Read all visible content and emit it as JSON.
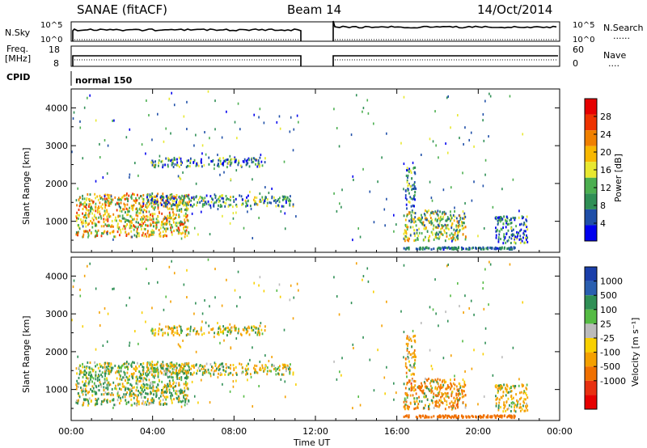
{
  "header": {
    "station": "SANAE (fitACF)",
    "beam": "Beam 14",
    "date": "14/Oct/2014"
  },
  "sky_panel": {
    "left_label": "N.Sky",
    "left_ticks": [
      "10^5",
      "10^0"
    ],
    "right_label": "N.Search",
    "right_ticks": [
      "10^5",
      "10^0"
    ],
    "line_style_note": "......"
  },
  "freq_panel": {
    "left_label_1": "Freq.",
    "left_label_2": "[MHz]",
    "left_ticks": [
      "18",
      "8"
    ],
    "right_label": "Nave",
    "right_ticks": [
      "60",
      "0"
    ],
    "cpid_label": "CPID",
    "mode_label": "normal 150"
  },
  "power_panel": {
    "ylabel": "Slant Range [km]",
    "yticks": [
      "4000",
      "3000",
      "2000",
      "1000"
    ],
    "colorbar_label": "Power [dB]",
    "colorbar_ticks": [
      "28",
      "24",
      "20",
      "16",
      "12",
      "8",
      "4"
    ],
    "colors": [
      "#0000ee",
      "#1f4fa8",
      "#2f8f55",
      "#4caf50",
      "#e8e830",
      "#f8b800",
      "#f08000",
      "#ee3300",
      "#e60000"
    ]
  },
  "velocity_panel": {
    "ylabel": "Slant Range [km]",
    "yticks": [
      "4000",
      "3000",
      "2000",
      "1000"
    ],
    "colorbar_label": "Velocity [m s⁻¹]",
    "colorbar_ticks": [
      "1000",
      "500",
      "100",
      "25",
      "-25",
      "-100",
      "-500",
      "-1000"
    ],
    "colors": [
      "#1a3faa",
      "#2a5fb0",
      "#2f8f55",
      "#55bb44",
      "#bbbbbb",
      "#f8d000",
      "#f4a000",
      "#f07000",
      "#e83010",
      "#e60000"
    ]
  },
  "time_axis": {
    "xlabel": "Time UT",
    "ticks": [
      "00:00",
      "04:00",
      "08:00",
      "12:00",
      "16:00",
      "20:00",
      "00:00"
    ]
  },
  "chart_data": {
    "type": "heatmap",
    "title": "SANAE (fitACF)  Beam 14  14/Oct/2014",
    "xlabel": "Time UT",
    "ylabel": "Slant Range [km]",
    "x_range_hours": [
      0,
      24
    ],
    "ylim": [
      180,
      4500
    ],
    "data_gap_hours": [
      11.2,
      12.8
    ],
    "power_colorbar_range_db": [
      0,
      32
    ],
    "velocity_colorbar_ticks_ms": [
      1000,
      500,
      100,
      25,
      -25,
      -100,
      -500,
      -1000
    ],
    "echo_regions": [
      {
        "t_start": 0.2,
        "t_end": 5.8,
        "range_min": 550,
        "range_max": 1700,
        "power_db": 18,
        "velocity_ms": 40
      },
      {
        "t_start": 3.5,
        "t_end": 10.9,
        "range_min": 1350,
        "range_max": 1650,
        "power_db": 10,
        "velocity_ms": -50
      },
      {
        "t_start": 3.9,
        "t_end": 9.5,
        "range_min": 2400,
        "range_max": 2650,
        "power_db": 9,
        "velocity_ms": -30
      },
      {
        "t_start": 16.3,
        "t_end": 19.4,
        "range_min": 450,
        "range_max": 1250,
        "power_db": 14,
        "velocity_ms": -300
      },
      {
        "t_start": 16.4,
        "t_end": 16.9,
        "range_min": 1300,
        "range_max": 2400,
        "power_db": 8,
        "velocity_ms": -150
      },
      {
        "t_start": 20.8,
        "t_end": 22.4,
        "range_min": 380,
        "range_max": 1100,
        "power_db": 7,
        "velocity_ms": -80
      }
    ]
  }
}
